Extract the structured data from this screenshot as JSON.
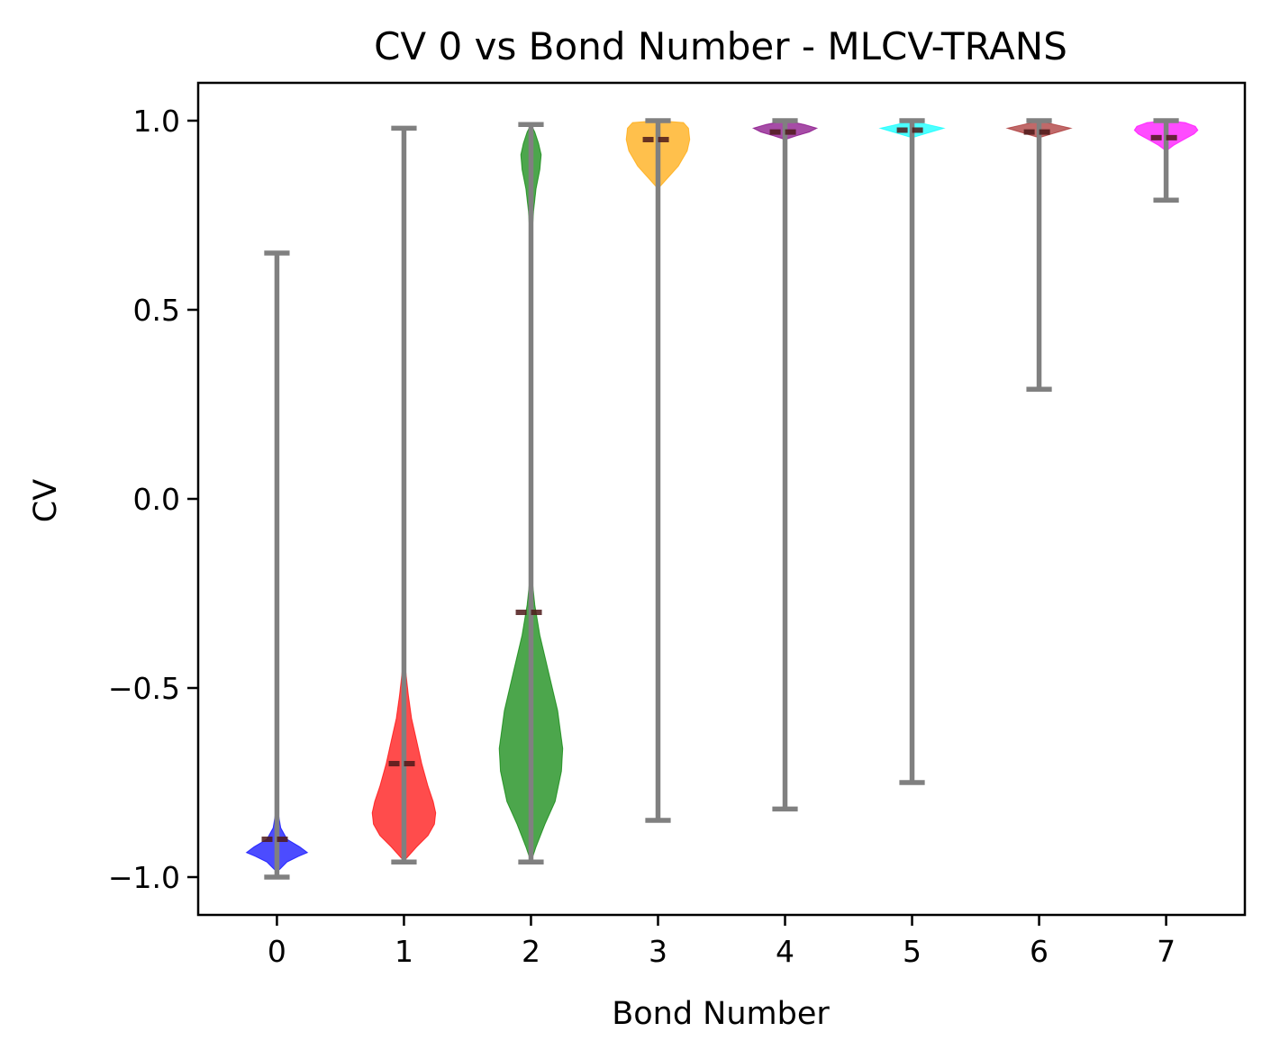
{
  "chart_data": {
    "type": "violin",
    "title": "CV 0 vs Bond Number - MLCV-TRANS",
    "xlabel": "Bond Number",
    "ylabel": "CV",
    "ylim": [
      -1.1,
      1.1
    ],
    "xlim": [
      -0.62,
      7.62
    ],
    "yticks": [
      {
        "value": 1.0,
        "label": "1.0"
      },
      {
        "value": 0.5,
        "label": "0.5"
      },
      {
        "value": 0.0,
        "label": "0.0"
      },
      {
        "value": -0.5,
        "label": "−0.5"
      },
      {
        "value": -1.0,
        "label": "−1.0"
      }
    ],
    "categories": [
      "0",
      "1",
      "2",
      "3",
      "4",
      "5",
      "6",
      "7"
    ],
    "grid": false,
    "whisker_color": "#808080",
    "median_color": "#4d1a1a",
    "violins": [
      {
        "category": "0",
        "color": "#0000ff",
        "min": -1.0,
        "max": 0.65,
        "median": -0.9,
        "density": [
          [
            -0.98,
            0.02
          ],
          [
            -0.96,
            0.08
          ],
          [
            -0.945,
            0.17
          ],
          [
            -0.935,
            0.24
          ],
          [
            -0.92,
            0.18
          ],
          [
            -0.9,
            0.08
          ],
          [
            -0.87,
            0.03
          ],
          [
            -0.83,
            0.01
          ]
        ]
      },
      {
        "category": "1",
        "color": "#ff0000",
        "min": -0.96,
        "max": 0.98,
        "median": -0.7,
        "density": [
          [
            -0.95,
            0.02
          ],
          [
            -0.92,
            0.1
          ],
          [
            -0.89,
            0.19
          ],
          [
            -0.86,
            0.24
          ],
          [
            -0.83,
            0.25
          ],
          [
            -0.8,
            0.23
          ],
          [
            -0.76,
            0.19
          ],
          [
            -0.7,
            0.14
          ],
          [
            -0.64,
            0.1
          ],
          [
            -0.58,
            0.06
          ],
          [
            -0.52,
            0.035
          ],
          [
            -0.46,
            0.015
          ],
          [
            -0.43,
            0.0
          ]
        ]
      },
      {
        "category": "2",
        "color": "#008000",
        "min": -0.96,
        "max": 0.99,
        "median": -0.3,
        "density": [
          [
            -0.96,
            0.0
          ],
          [
            -0.92,
            0.04
          ],
          [
            -0.86,
            0.11
          ],
          [
            -0.8,
            0.19
          ],
          [
            -0.72,
            0.24
          ],
          [
            -0.66,
            0.25
          ],
          [
            -0.56,
            0.21
          ],
          [
            -0.46,
            0.14
          ],
          [
            -0.36,
            0.07
          ],
          [
            -0.28,
            0.03
          ],
          [
            -0.2,
            0.005
          ],
          [
            -0.1,
            0.0
          ],
          [
            0.6,
            0.0
          ],
          [
            0.68,
            0.005
          ],
          [
            0.76,
            0.02
          ],
          [
            0.82,
            0.04
          ],
          [
            0.87,
            0.07
          ],
          [
            0.91,
            0.08
          ],
          [
            0.94,
            0.06
          ],
          [
            0.97,
            0.03
          ],
          [
            0.99,
            0.0
          ]
        ]
      },
      {
        "category": "3",
        "color": "#ffa500",
        "min": -0.85,
        "max": 1.0,
        "median": 0.95,
        "density": [
          [
            0.82,
            0.0
          ],
          [
            0.85,
            0.08
          ],
          [
            0.88,
            0.16
          ],
          [
            0.92,
            0.23
          ],
          [
            0.95,
            0.25
          ],
          [
            0.98,
            0.24
          ],
          [
            0.995,
            0.2
          ],
          [
            1.0,
            0.0
          ]
        ]
      },
      {
        "category": "4",
        "color": "#800080",
        "min": -0.82,
        "max": 1.0,
        "median": 0.97,
        "density": [
          [
            0.95,
            0.0
          ],
          [
            0.96,
            0.09
          ],
          [
            0.97,
            0.19
          ],
          [
            0.98,
            0.25
          ],
          [
            0.99,
            0.15
          ],
          [
            1.0,
            0.0
          ]
        ]
      },
      {
        "category": "5",
        "color": "#00ffff",
        "min": -0.75,
        "max": 1.0,
        "median": 0.975,
        "density": [
          [
            0.955,
            0.0
          ],
          [
            0.965,
            0.1
          ],
          [
            0.975,
            0.2
          ],
          [
            0.98,
            0.25
          ],
          [
            0.99,
            0.12
          ],
          [
            1.0,
            0.0
          ]
        ]
      },
      {
        "category": "6",
        "color": "#a52a2a",
        "min": 0.29,
        "max": 1.0,
        "median": 0.97,
        "density": [
          [
            0.955,
            0.0
          ],
          [
            0.965,
            0.1
          ],
          [
            0.975,
            0.2
          ],
          [
            0.98,
            0.25
          ],
          [
            0.99,
            0.12
          ],
          [
            1.0,
            0.0
          ]
        ]
      },
      {
        "category": "7",
        "color": "#ff00ff",
        "min": 0.79,
        "max": 1.0,
        "median": 0.955,
        "density": [
          [
            0.92,
            0.0
          ],
          [
            0.935,
            0.06
          ],
          [
            0.95,
            0.14
          ],
          [
            0.965,
            0.22
          ],
          [
            0.975,
            0.25
          ],
          [
            0.985,
            0.23
          ],
          [
            0.995,
            0.15
          ],
          [
            1.0,
            0.0
          ]
        ]
      }
    ]
  }
}
